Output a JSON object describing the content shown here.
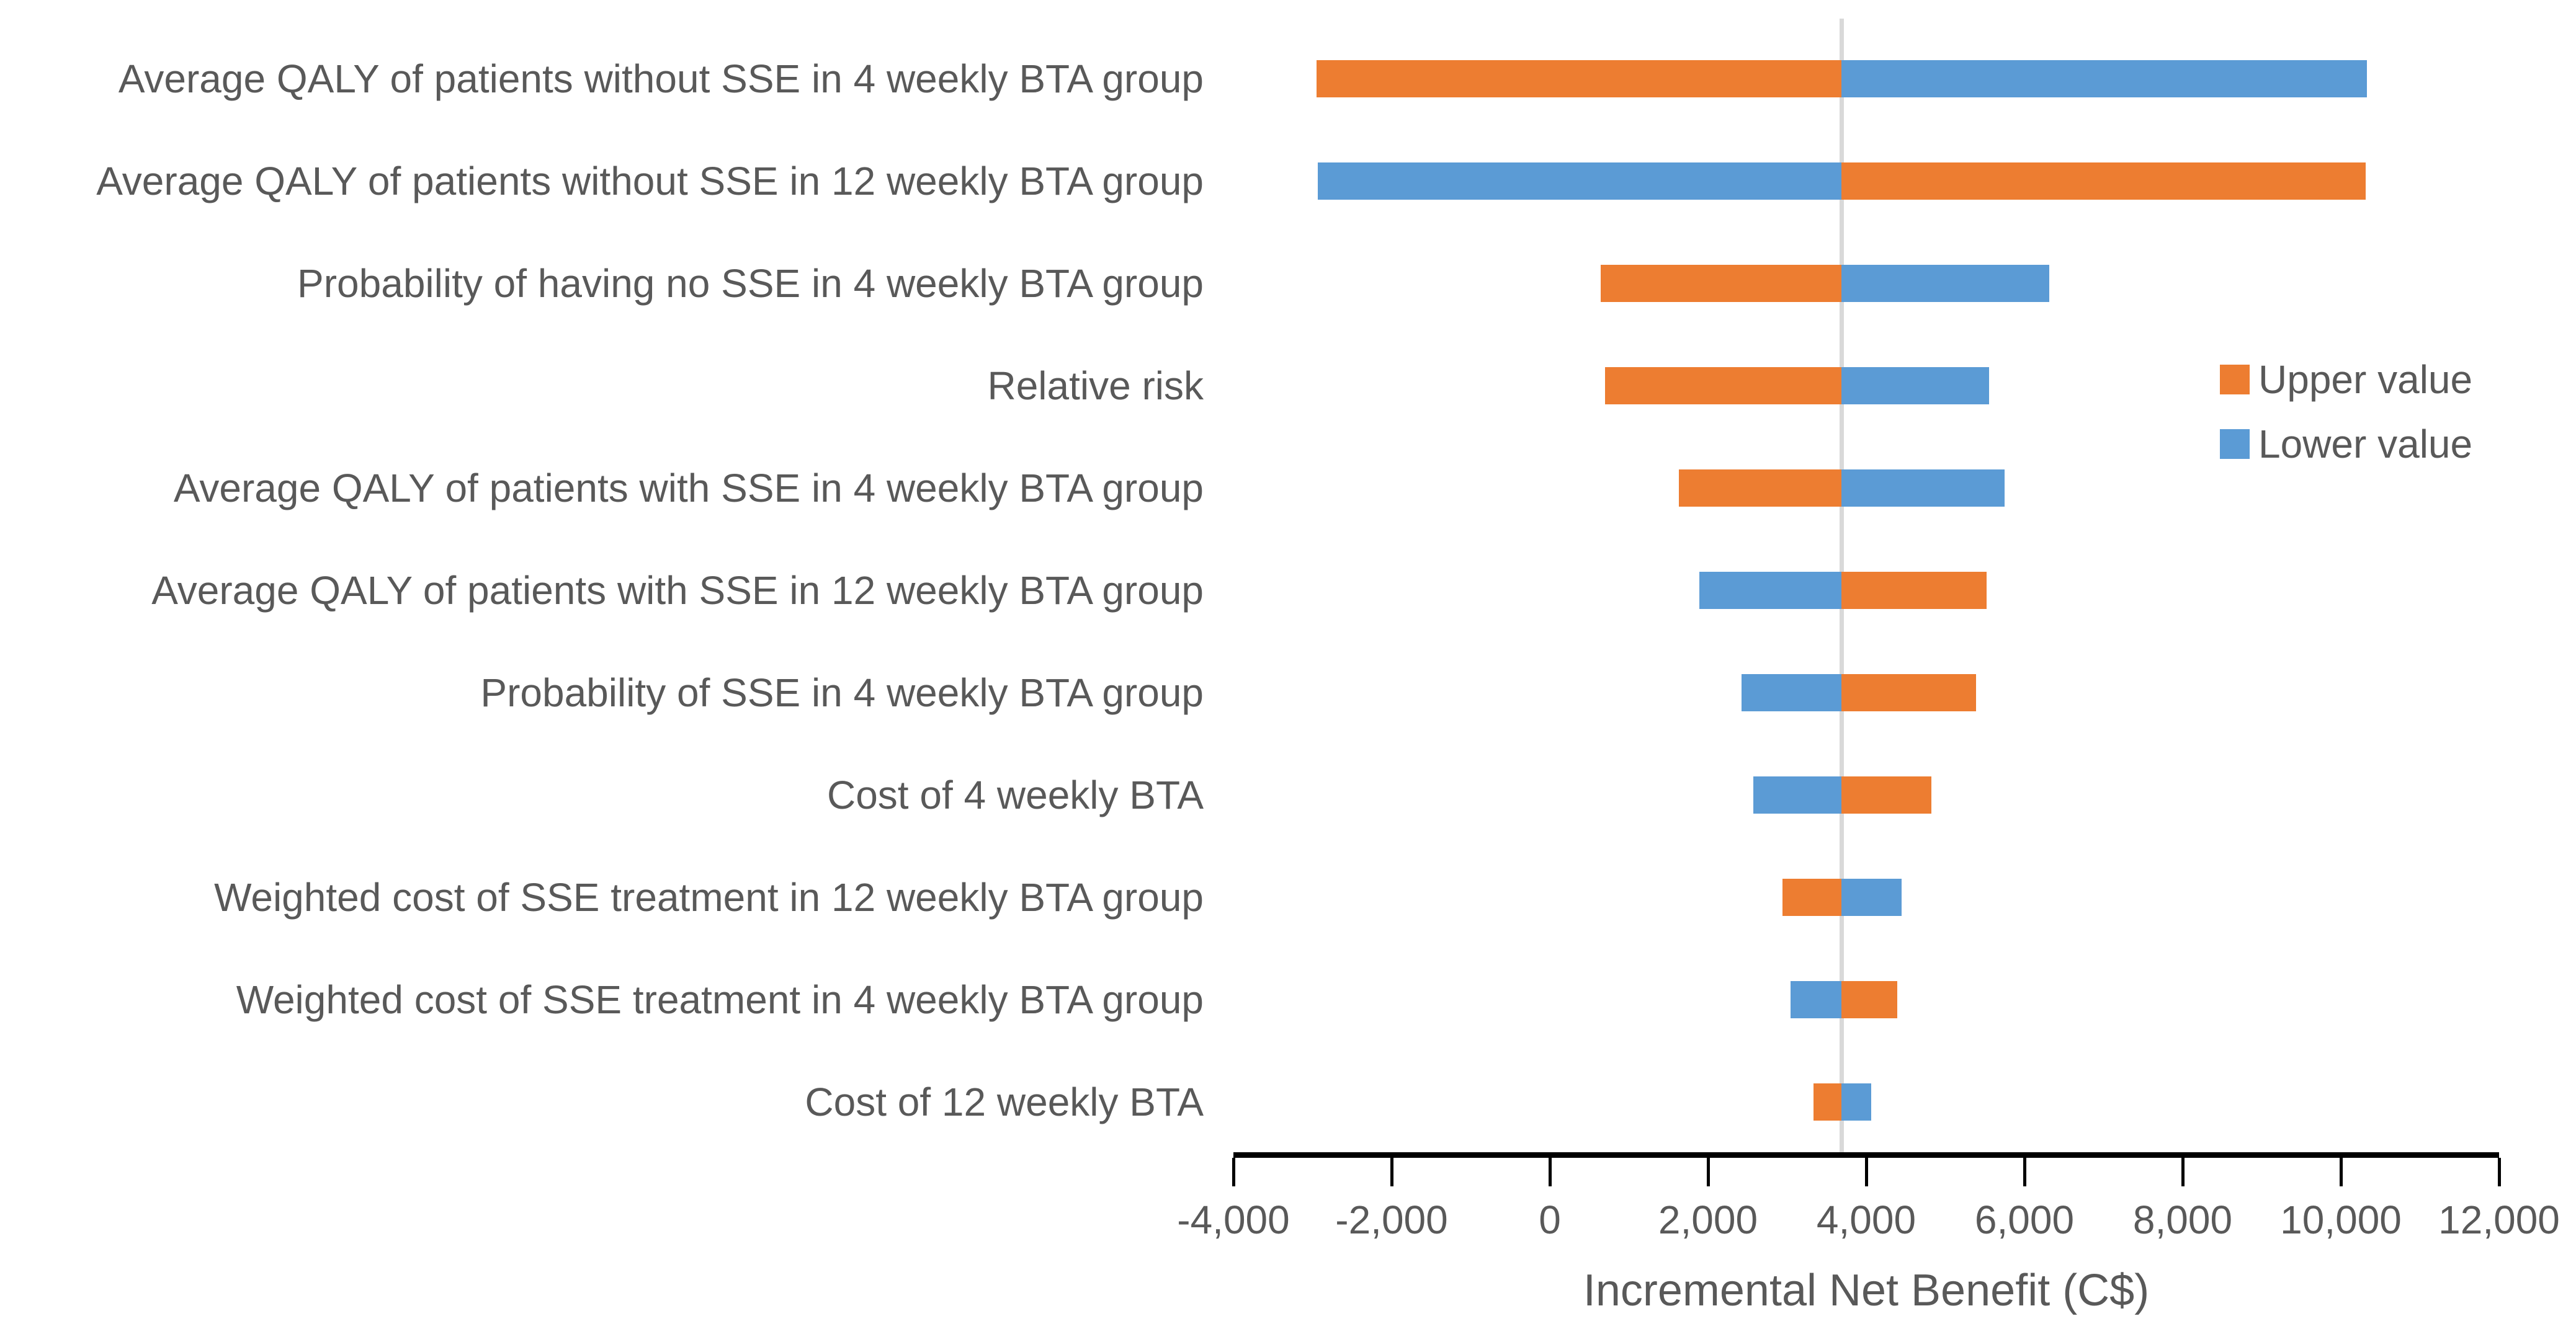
{
  "chart_data": {
    "type": "bar",
    "subtype": "tornado",
    "title": "",
    "xlabel": "Incremental Net Benefit (C$)",
    "ylabel": "",
    "xlim": [
      -4000,
      12000
    ],
    "x_ticks": [
      -4000,
      -2000,
      0,
      2000,
      4000,
      6000,
      8000,
      10000,
      12000
    ],
    "base_value": 3690,
    "grid": "off",
    "legend_position": "right",
    "colors": {
      "upper": "#ED7D31",
      "lower": "#5B9BD5",
      "baseline": "#D9D9D9",
      "axis": "#000000",
      "text": "#595959"
    },
    "legend": [
      {
        "label": "Upper value",
        "color": "#ED7D31"
      },
      {
        "label": "Lower value",
        "color": "#5B9BD5"
      }
    ],
    "categories": [
      "Average QALY of patients without SSE in 4 weekly BTA group",
      "Average QALY of patients without SSE in 12 weekly BTA group",
      "Probability of having no SSE in 4 weekly BTA group",
      "Relative risk",
      "Average QALY of patients with SSE in 4 weekly BTA group",
      "Average QALY of patients with SSE in 12 weekly BTA group",
      "Probability of SSE in 4 weekly BTA group",
      "Cost of 4 weekly BTA",
      "Weighted cost of SSE treatment in 12 weekly BTA group",
      "Weighted cost of SSE treatment in 4 weekly BTA group",
      "Cost of 12 weekly BTA"
    ],
    "series": [
      {
        "name": "Upper value",
        "values": [
          -2950,
          10310,
          640,
          700,
          1630,
          5520,
          5390,
          4820,
          2940,
          4390,
          3330
        ]
      },
      {
        "name": "Lower value",
        "values": [
          10330,
          -2930,
          6310,
          5550,
          5750,
          1890,
          2420,
          2570,
          4450,
          3040,
          4060
        ]
      }
    ]
  }
}
